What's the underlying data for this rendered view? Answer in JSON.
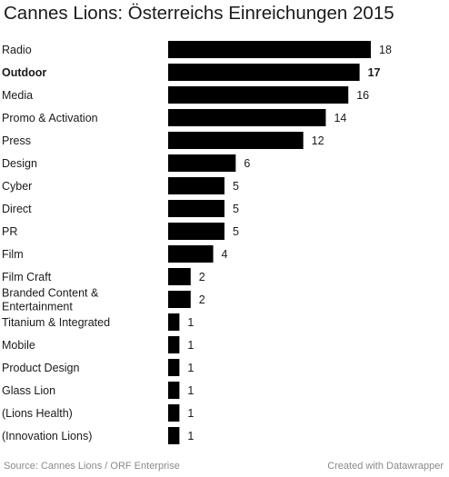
{
  "chart_data": {
    "type": "bar",
    "orientation": "horizontal",
    "title": "Cannes Lions: Österreichs Einreichungen 2015",
    "categories": [
      "Radio",
      "Outdoor",
      "Media",
      "Promo & Activation",
      "Press",
      "Design",
      "Cyber",
      "Direct",
      "PR",
      "Film",
      "Film Craft",
      "Branded Content & Entertainment",
      "Titanium & Integrated",
      "Mobile",
      "Product Design",
      "Glass Lion",
      "(Lions Health)",
      "(Innovation Lions)"
    ],
    "values": [
      18,
      17,
      16,
      14,
      12,
      6,
      5,
      5,
      5,
      4,
      2,
      2,
      1,
      1,
      1,
      1,
      1,
      1
    ],
    "highlighted": [
      "Outdoor"
    ],
    "bar_color": "#000000",
    "xlim": [
      0,
      18
    ],
    "grid": false,
    "xlabel": "",
    "ylabel": ""
  },
  "footer": {
    "source": "Source: Cannes Lions / ORF Enterprise",
    "credit": "Created with Datawrapper"
  }
}
